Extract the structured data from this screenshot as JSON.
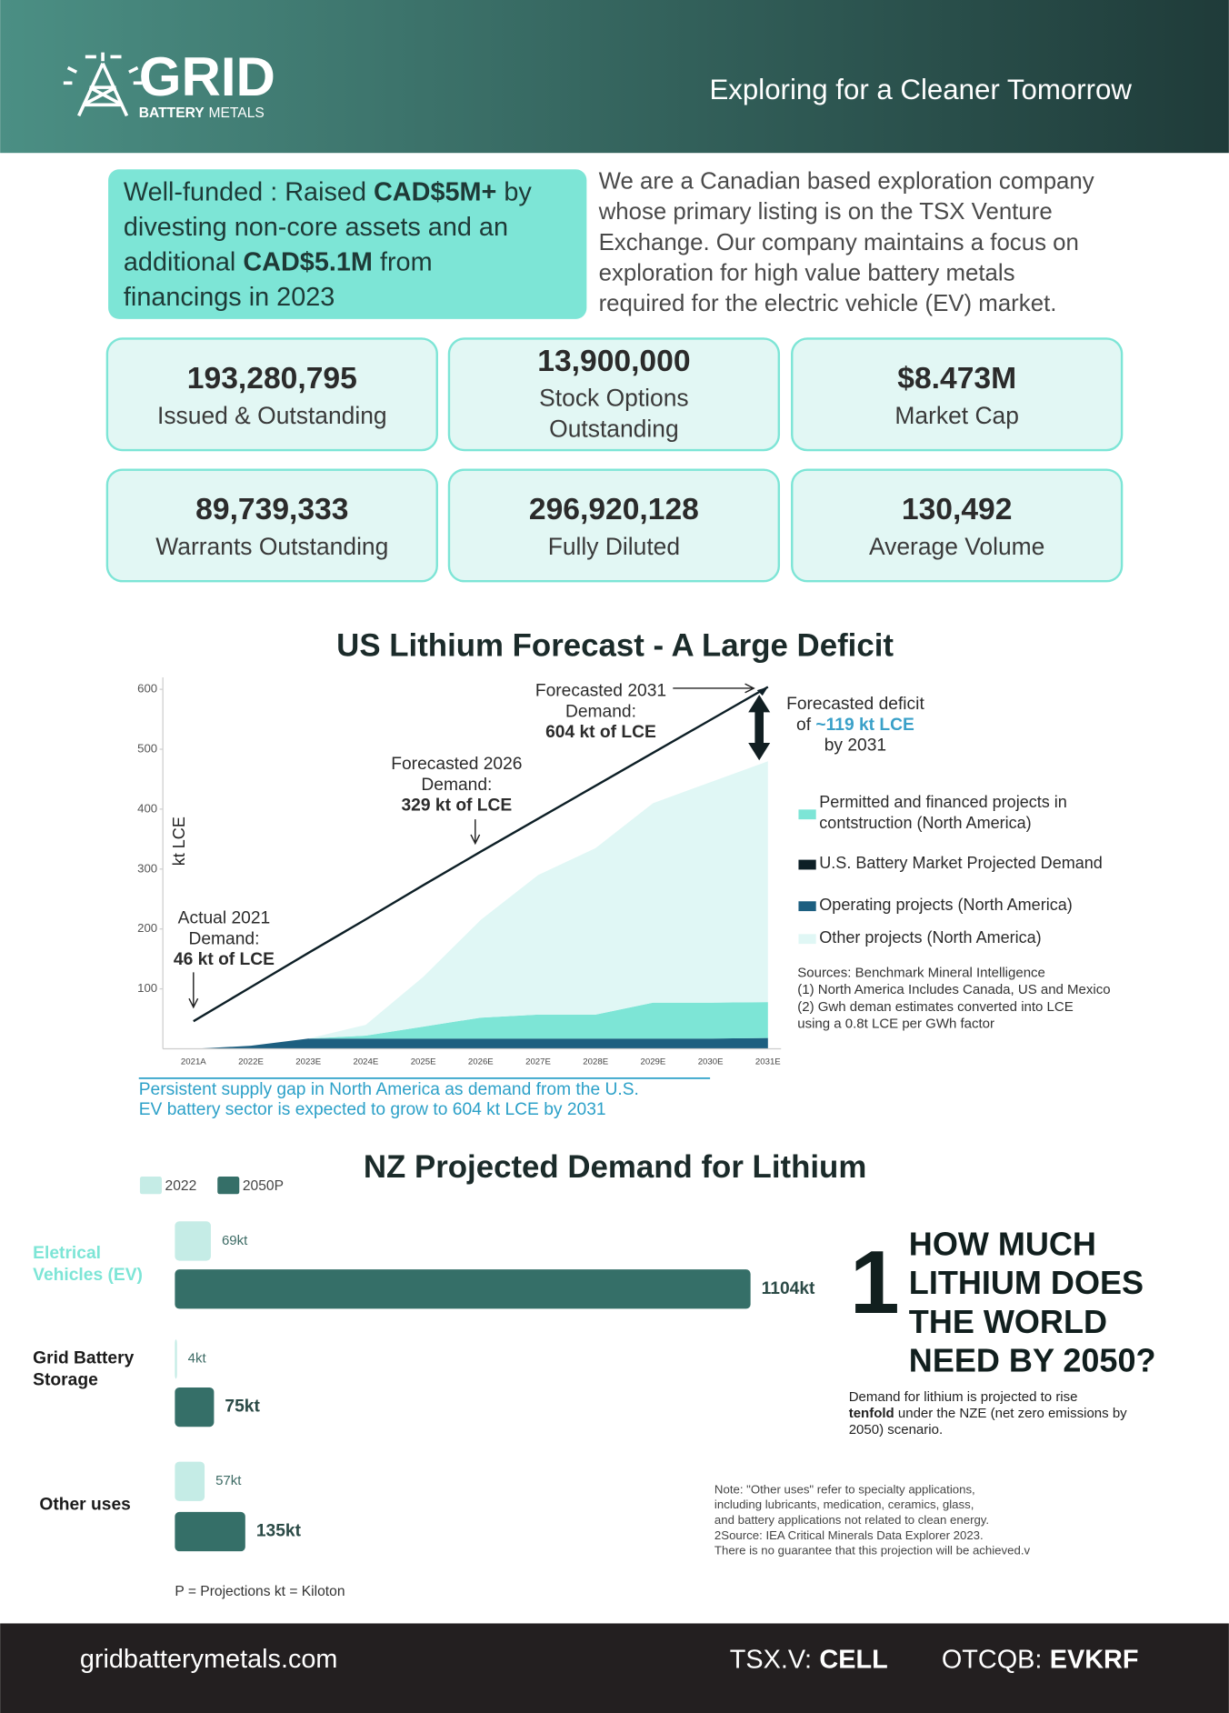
{
  "header": {
    "logo_main": "GRID",
    "logo_sub_bold": "BATTERY",
    "logo_sub": "METALS",
    "tagline": "Exploring for a Cleaner Tomorrow"
  },
  "highlight": [
    [
      {
        "text": "Well-funded : Raised "
      },
      {
        "text": "CAD$5M+",
        "bold": true
      },
      {
        "text": " by"
      }
    ],
    [
      {
        "text": "divesting non-core assets and an"
      }
    ],
    [
      {
        "text": "additional "
      },
      {
        "text": "CAD$5.1M",
        "bold": true
      },
      {
        "text": " from"
      }
    ],
    [
      {
        "text": "financings in 2023"
      }
    ]
  ],
  "intro": [
    "We are a Canadian based exploration company",
    "whose primary listing is on the TSX Venture",
    "Exchange. Our company maintains a focus on",
    "exploration for high value battery metals",
    "required for the electric vehicle (EV) market."
  ],
  "stats": [
    {
      "value": "193,280,795",
      "label": [
        "Issued & Outstanding"
      ]
    },
    {
      "value": "13,900,000",
      "label": [
        "Stock Options",
        "Outstanding"
      ]
    },
    {
      "value": "$8.473M",
      "label": [
        "Market Cap"
      ]
    },
    {
      "value": "89,739,333",
      "label": [
        "Warrants Outstanding"
      ]
    },
    {
      "value": "296,920,128",
      "label": [
        "Fully Diluted"
      ]
    },
    {
      "value": "130,492",
      "label": [
        "Average Volume"
      ]
    }
  ],
  "chart_data": [
    {
      "type": "area",
      "title": "US Lithium Forecast - A Large Deficit",
      "y_label": "kt LCE",
      "categories": [
        "2021A",
        "2022E",
        "2023E",
        "2024E",
        "2025E",
        "2026E",
        "2027E",
        "2028E",
        "2029E",
        "2030E",
        "2031E"
      ],
      "series": [
        {
          "name": "Operating projects (North America)",
          "color": "#1d5f80",
          "kind": "area",
          "values": [
            0,
            5,
            17,
            17,
            17,
            17,
            17,
            17,
            17,
            17,
            18
          ]
        },
        {
          "name": "Permitted and financed projects in contstruction (North America)",
          "color": "#7de5d6",
          "kind": "area",
          "values": [
            0,
            0,
            0,
            5,
            20,
            35,
            40,
            40,
            60,
            60,
            60
          ]
        },
        {
          "name": "Other projects (North America)",
          "color": "#e0f7f5",
          "kind": "area",
          "values": [
            0,
            0,
            0,
            18,
            83,
            163,
            233,
            278,
            333,
            368,
            402
          ]
        },
        {
          "name": "U.S. Battery Market Projected Demand",
          "color": "#0d1f26",
          "kind": "line",
          "values": [
            46,
            103,
            160,
            216,
            273,
            329,
            384,
            439,
            494,
            549,
            604
          ]
        }
      ],
      "ylim": [
        0,
        620
      ],
      "yticks": [
        100,
        200,
        300,
        400,
        500,
        600
      ],
      "annotations": [
        {
          "lines": [
            [
              {
                "text": "Forecasted 2031"
              }
            ],
            [
              {
                "text": "Demand:"
              }
            ],
            [
              {
                "text": "604 kt of LCE",
                "bold": true
              }
            ]
          ]
        },
        {
          "lines": [
            [
              {
                "text": "Forecasted 2026"
              }
            ],
            [
              {
                "text": "Demand:"
              }
            ],
            [
              {
                "text": "329 kt of LCE",
                "bold": true
              }
            ]
          ]
        },
        {
          "lines": [
            [
              {
                "text": "Actual 2021"
              }
            ],
            [
              {
                "text": "Demand:"
              }
            ],
            [
              {
                "text": "46 kt of LCE",
                "bold": true
              }
            ]
          ]
        },
        {
          "lines": [
            [
              {
                "text": "Forecasted deficit"
              }
            ],
            [
              {
                "text": "of "
              },
              {
                "text": "~119 kt LCE",
                "bold": true,
                "color": "#3aa0c8"
              }
            ],
            [
              {
                "text": "by 2031"
              }
            ]
          ]
        }
      ],
      "sources": [
        "Sources: Benchmark Mineral Intelligence",
        "(1) North America Includes Canada, US and Mexico",
        "(2) Gwh deman estimates converted into LCE",
        "using a 0.8t LCE per GWh factor"
      ],
      "caption": [
        "Persistent supply gap in North America as demand from the U.S.",
        "EV battery sector is expected to grow to 604 kt LCE by 2031"
      ]
    },
    {
      "type": "hbar",
      "title": "NZ Projected Demand for Lithium",
      "categories": [
        "Eletrical Vehicles (EV)",
        "Grid Battery Storage",
        "Other uses"
      ],
      "series": [
        {
          "name": "2022",
          "color": "#c5ece6",
          "values": [
            69,
            4,
            57
          ],
          "value_labels": [
            "69kt",
            "4kt",
            "57kt"
          ]
        },
        {
          "name": "2050P",
          "color": "#356f68",
          "values": [
            1104,
            75,
            135
          ],
          "value_labels": [
            "1104kt",
            "75kt",
            "135kt"
          ]
        }
      ],
      "xlim": [
        0,
        1150
      ],
      "footnote": "P = Projections kt = Kiloton"
    }
  ],
  "callout": {
    "number": "1",
    "title": [
      "HOW MUCH",
      "LITHIUM DOES",
      "THE WORLD",
      "NEED BY 2050?"
    ],
    "description": [
      [
        {
          "text": "Demand for lithium is projected to rise"
        }
      ],
      [
        {
          "text": "tenfold",
          "bold": true
        },
        {
          "text": " under the NZE (net zero emissions by"
        }
      ],
      [
        {
          "text": "2050) scenario."
        }
      ]
    ],
    "notes": [
      "Note: \"Other uses\" refer to specialty applications,",
      "including lubricants, medication, ceramics, glass,",
      "and battery applications not related to clean energy.",
      "2Source: IEA Critical Minerals Data Explorer 2023.",
      "There is no guarantee that this projection will be achieved.v"
    ]
  },
  "footer": {
    "website": "gridbatterymetals.com",
    "tsx_label": "TSX.V:",
    "tsx": "CELL",
    "otc_label": "OTCQB:",
    "otc": "EVKRF"
  }
}
